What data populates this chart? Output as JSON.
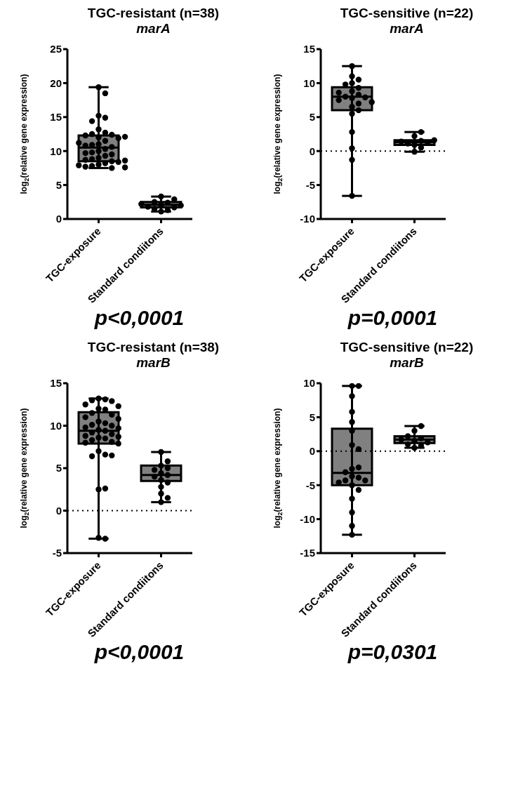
{
  "chart_data": [
    {
      "type": "box",
      "title": "TGC-resistant (n=38)",
      "subtitle": "marA",
      "ylabel": "log$_{2}$(relative gene expression)",
      "categories": [
        "TGC-exposure",
        "Standard condiitons"
      ],
      "color": "#808080",
      "ylim": [
        0,
        25
      ],
      "yticks": [
        0,
        5,
        10,
        15,
        20,
        25
      ],
      "annotations": [
        "p<0,0001"
      ],
      "boxes": [
        {
          "low": 7.5,
          "q1": 8.5,
          "median": 10.5,
          "q3": 12.3,
          "high": 19.4
        },
        {
          "low": 1.1,
          "q1": 1.7,
          "median": 2.1,
          "q3": 2.5,
          "high": 3.3
        }
      ],
      "series": [
        {
          "type": "scatter",
          "color": "#000000",
          "marker": "circle",
          "x": [
            "TGC-exposure",
            "TGC-exposure",
            "TGC-exposure",
            "TGC-exposure",
            "TGC-exposure",
            "TGC-exposure",
            "TGC-exposure",
            "TGC-exposure",
            "TGC-exposure",
            "TGC-exposure",
            "TGC-exposure",
            "TGC-exposure",
            "TGC-exposure",
            "TGC-exposure",
            "TGC-exposure",
            "TGC-exposure",
            "TGC-exposure",
            "TGC-exposure",
            "TGC-exposure",
            "TGC-exposure",
            "TGC-exposure",
            "TGC-exposure",
            "TGC-exposure",
            "TGC-exposure",
            "TGC-exposure",
            "TGC-exposure",
            "TGC-exposure",
            "TGC-exposure",
            "TGC-exposure",
            "TGC-exposure",
            "TGC-exposure",
            "TGC-exposure",
            "TGC-exposure",
            "TGC-exposure",
            "TGC-exposure",
            "TGC-exposure",
            "TGC-exposure",
            "TGC-exposure",
            "Standard condiitons",
            "Standard condiitons",
            "Standard condiitons",
            "Standard condiitons",
            "Standard condiitons",
            "Standard condiitons",
            "Standard condiitons",
            "Standard condiitons",
            "Standard condiitons",
            "Standard condiitons",
            "Standard condiitons",
            "Standard condiitons"
          ],
          "values": [
            19.4,
            18.5,
            15.2,
            14.9,
            14.4,
            13.2,
            12.7,
            12.5,
            12.4,
            12.3,
            12.0,
            11.9,
            11.5,
            11.0,
            10.9,
            10.6,
            10.3,
            10.0,
            9.8,
            9.5,
            9.3,
            9.0,
            8.8,
            8.7,
            8.5,
            8.4,
            8.2,
            8.0,
            7.9,
            7.8,
            7.7,
            7.6,
            7.5,
            9.7,
            10.8,
            11.2,
            12.1,
            8.6,
            1.1,
            1.3,
            1.5,
            1.7,
            1.8,
            2.0,
            2.1,
            2.2,
            2.4,
            2.5,
            2.9,
            3.3
          ]
        }
      ]
    },
    {
      "type": "box",
      "title": "TGC-sensitive (n=22)",
      "subtitle": "marA",
      "ylabel": "log$_{2}$(relative gene expression)",
      "categories": [
        "TGC-exposure",
        "Standard condiitons"
      ],
      "color": "#808080",
      "ylim": [
        -10,
        15
      ],
      "yticks": [
        -10,
        -5,
        0,
        5,
        10,
        15
      ],
      "annotations": [
        "p=0,0001"
      ],
      "ref_lines": [
        {
          "axis": "y",
          "value": 0,
          "line_style": "dotted"
        }
      ],
      "boxes": [
        {
          "low": -6.6,
          "q1": 6.0,
          "median": 8.0,
          "q3": 9.4,
          "high": 12.5
        },
        {
          "low": -0.1,
          "q1": 0.9,
          "median": 1.3,
          "q3": 1.6,
          "high": 2.8
        }
      ],
      "series": [
        {
          "type": "scatter",
          "color": "#000000",
          "marker": "circle",
          "x": [
            "TGC-exposure",
            "TGC-exposure",
            "TGC-exposure",
            "TGC-exposure",
            "TGC-exposure",
            "TGC-exposure",
            "TGC-exposure",
            "TGC-exposure",
            "TGC-exposure",
            "TGC-exposure",
            "TGC-exposure",
            "TGC-exposure",
            "TGC-exposure",
            "TGC-exposure",
            "TGC-exposure",
            "TGC-exposure",
            "TGC-exposure",
            "TGC-exposure",
            "TGC-exposure",
            "TGC-exposure",
            "TGC-exposure",
            "TGC-exposure",
            "Standard condiitons",
            "Standard condiitons",
            "Standard condiitons",
            "Standard condiitons",
            "Standard condiitons",
            "Standard condiitons",
            "Standard condiitons",
            "Standard condiitons",
            "Standard condiitons",
            "Standard condiitons"
          ],
          "values": [
            12.5,
            11.0,
            10.5,
            10.0,
            9.8,
            9.3,
            8.8,
            8.3,
            8.0,
            7.9,
            7.8,
            7.5,
            7.0,
            7.2,
            6.5,
            6.0,
            5.5,
            2.8,
            0.4,
            -1.3,
            -6.6,
            8.6,
            -0.1,
            0.5,
            0.9,
            1.1,
            1.2,
            1.4,
            1.5,
            1.6,
            2.2,
            2.8
          ]
        }
      ]
    },
    {
      "type": "box",
      "title": "TGC-resistant (n=38)",
      "subtitle": "marB",
      "ylabel": "log$_{2}$(relative gene expression)",
      "categories": [
        "TGC-exposure",
        "Standard condiitons"
      ],
      "color": "#808080",
      "ylim": [
        -5,
        15
      ],
      "yticks": [
        -5,
        0,
        5,
        10,
        15
      ],
      "annotations": [
        "p<0,0001"
      ],
      "ref_lines": [
        {
          "axis": "y",
          "value": 0,
          "line_style": "dotted"
        }
      ],
      "boxes": [
        {
          "low": -3.3,
          "q1": 7.9,
          "median": 9.4,
          "q3": 11.6,
          "high": 13.2
        },
        {
          "low": 1.0,
          "q1": 3.5,
          "median": 4.2,
          "q3": 5.3,
          "high": 6.9
        }
      ],
      "series": [
        {
          "type": "scatter",
          "color": "#000000",
          "marker": "circle",
          "x": [
            "TGC-exposure",
            "TGC-exposure",
            "TGC-exposure",
            "TGC-exposure",
            "TGC-exposure",
            "TGC-exposure",
            "TGC-exposure",
            "TGC-exposure",
            "TGC-exposure",
            "TGC-exposure",
            "TGC-exposure",
            "TGC-exposure",
            "TGC-exposure",
            "TGC-exposure",
            "TGC-exposure",
            "TGC-exposure",
            "TGC-exposure",
            "TGC-exposure",
            "TGC-exposure",
            "TGC-exposure",
            "TGC-exposure",
            "TGC-exposure",
            "TGC-exposure",
            "TGC-exposure",
            "TGC-exposure",
            "TGC-exposure",
            "TGC-exposure",
            "TGC-exposure",
            "TGC-exposure",
            "TGC-exposure",
            "TGC-exposure",
            "TGC-exposure",
            "TGC-exposure",
            "TGC-exposure",
            "TGC-exposure",
            "TGC-exposure",
            "TGC-exposure",
            "TGC-exposure",
            "Standard condiitons",
            "Standard condiitons",
            "Standard condiitons",
            "Standard condiitons",
            "Standard condiitons",
            "Standard condiitons",
            "Standard condiitons",
            "Standard condiitons",
            "Standard condiitons",
            "Standard condiitons",
            "Standard condiitons",
            "Standard condiitons",
            "Standard condiitons",
            "Standard condiitons"
          ],
          "values": [
            13.2,
            13.1,
            13.0,
            12.9,
            12.5,
            12.0,
            11.9,
            11.5,
            11.3,
            10.5,
            10.3,
            10.1,
            10.0,
            9.8,
            9.5,
            9.4,
            9.2,
            9.0,
            8.8,
            8.6,
            8.5,
            8.3,
            8.1,
            8.0,
            7.9,
            7.0,
            6.6,
            6.4,
            6.5,
            2.5,
            2.6,
            -3.2,
            -3.3,
            11.0,
            12.3,
            9.7,
            10.8,
            8.7,
            1.0,
            1.5,
            2.0,
            2.8,
            3.3,
            3.6,
            4.0,
            4.2,
            4.4,
            4.8,
            5.0,
            5.3,
            5.8,
            6.9
          ]
        }
      ]
    },
    {
      "type": "box",
      "title": "TGC-sensitive (n=22)",
      "subtitle": "marB",
      "ylabel": "log$_{2}$(relative gene expression)",
      "categories": [
        "TGC-exposure",
        "Standard condiitons"
      ],
      "color": "#808080",
      "ylim": [
        -15,
        10
      ],
      "yticks": [
        -15,
        -10,
        -5,
        0,
        5,
        10
      ],
      "annotations": [
        "p=0,0301"
      ],
      "ref_lines": [
        {
          "axis": "y",
          "value": 0,
          "line_style": "dotted"
        }
      ],
      "boxes": [
        {
          "low": -12.3,
          "q1": -5.0,
          "median": -3.2,
          "q3": 3.3,
          "high": 9.6
        },
        {
          "low": 0.5,
          "q1": 1.2,
          "median": 1.7,
          "q3": 2.2,
          "high": 3.7
        }
      ],
      "series": [
        {
          "type": "scatter",
          "color": "#000000",
          "marker": "circle",
          "x": [
            "TGC-exposure",
            "TGC-exposure",
            "TGC-exposure",
            "TGC-exposure",
            "TGC-exposure",
            "TGC-exposure",
            "TGC-exposure",
            "TGC-exposure",
            "TGC-exposure",
            "TGC-exposure",
            "TGC-exposure",
            "TGC-exposure",
            "TGC-exposure",
            "TGC-exposure",
            "TGC-exposure",
            "TGC-exposure",
            "TGC-exposure",
            "TGC-exposure",
            "TGC-exposure",
            "TGC-exposure",
            "TGC-exposure",
            "TGC-exposure",
            "Standard condiitons",
            "Standard condiitons",
            "Standard condiitons",
            "Standard condiitons",
            "Standard condiitons",
            "Standard condiitons",
            "Standard condiitons",
            "Standard condiitons",
            "Standard condiitons",
            "Standard condiitons"
          ],
          "values": [
            9.6,
            9.6,
            8.1,
            5.8,
            4.3,
            3.0,
            0.9,
            0.3,
            -2.6,
            -2.4,
            -3.1,
            -3.7,
            -3.9,
            -4.3,
            -4.3,
            -4.6,
            -5.0,
            -5.7,
            -7.0,
            -9.0,
            -11.0,
            -12.3,
            0.5,
            0.8,
            1.0,
            1.3,
            1.5,
            1.7,
            1.9,
            2.2,
            3.0,
            3.7
          ]
        }
      ]
    }
  ]
}
